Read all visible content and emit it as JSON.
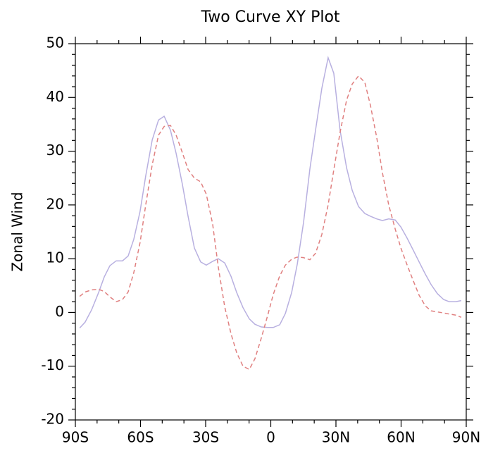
{
  "chart_data": {
    "type": "line",
    "title": "Two Curve XY Plot",
    "y_label": "Zonal Wind",
    "x": [
      -88.0,
      -85.5,
      -82.5,
      -79.3,
      -76.7,
      -74.1,
      -71.2,
      -68.3,
      -65.7,
      -63.1,
      -60.2,
      -57.6,
      -54.6,
      -51.7,
      -49.1,
      -46.2,
      -43.6,
      -40.7,
      -38.1,
      -35.2,
      -32.3,
      -29.7,
      -26.8,
      -24.2,
      -21.2,
      -18.3,
      -15.7,
      -12.8,
      -9.9,
      -7.3,
      -4.4,
      -1.4,
      1.1,
      4.1,
      6.7,
      9.6,
      12.2,
      15.1,
      18.0,
      20.6,
      23.5,
      26.4,
      29.0,
      31.9,
      34.9,
      37.5,
      40.4,
      43.3,
      45.9,
      48.8,
      51.4,
      54.3,
      57.3,
      59.9,
      62.8,
      65.7,
      68.3,
      71.2,
      73.8,
      76.7,
      79.6,
      82.2,
      85.2,
      87.7
    ],
    "series": [
      {
        "color": "#b8b0e0",
        "dashed": false,
        "values": [
          -2.9,
          -1.8,
          0.5,
          3.7,
          6.6,
          8.7,
          9.6,
          9.6,
          10.5,
          13.6,
          18.8,
          25.4,
          32.1,
          35.8,
          36.5,
          33.9,
          29.6,
          23.8,
          17.9,
          12.0,
          9.4,
          8.8,
          9.5,
          10.0,
          9.2,
          6.7,
          3.7,
          0.9,
          -1.2,
          -2.2,
          -2.7,
          -2.8,
          -2.8,
          -2.3,
          -0.2,
          3.7,
          9.0,
          16.8,
          26.7,
          33.9,
          41.7,
          47.4,
          44.5,
          33.9,
          26.9,
          22.7,
          19.7,
          18.4,
          17.9,
          17.4,
          17.1,
          17.4,
          17.2,
          15.9,
          13.8,
          11.5,
          9.4,
          7.1,
          5.2,
          3.5,
          2.4,
          2.0,
          2.0,
          2.2
        ]
      },
      {
        "color": "#e08080",
        "dashed": true,
        "values": [
          3.0,
          3.8,
          4.2,
          4.3,
          3.9,
          2.9,
          2.0,
          2.4,
          3.8,
          7.4,
          13.0,
          20.0,
          27.5,
          33.0,
          34.6,
          34.8,
          33.0,
          29.7,
          26.6,
          25.0,
          24.3,
          22.0,
          16.5,
          8.5,
          1.0,
          -4.0,
          -7.5,
          -10.0,
          -10.6,
          -8.6,
          -4.8,
          -0.5,
          3.3,
          6.8,
          8.8,
          9.9,
          10.3,
          10.2,
          9.8,
          11.0,
          14.5,
          20.0,
          26.5,
          33.5,
          39.5,
          42.5,
          44.0,
          42.8,
          38.5,
          32.5,
          26.0,
          20.0,
          15.5,
          12.0,
          8.8,
          5.8,
          3.2,
          1.2,
          0.3,
          0.1,
          -0.1,
          -0.3,
          -0.5,
          -0.9
        ]
      }
    ],
    "xlim": [
      -90,
      90
    ],
    "xticks": [
      {
        "value": -90,
        "label": "90S"
      },
      {
        "value": -60,
        "label": "60S"
      },
      {
        "value": -30,
        "label": "30S"
      },
      0,
      {
        "value": 30,
        "label": "30N"
      },
      {
        "value": 60,
        "label": "60N"
      },
      {
        "value": 90,
        "label": "90N"
      }
    ],
    "ylim": [
      -20,
      50
    ],
    "yticks": [
      -20,
      -10,
      0,
      10,
      20,
      30,
      40,
      50
    ]
  }
}
